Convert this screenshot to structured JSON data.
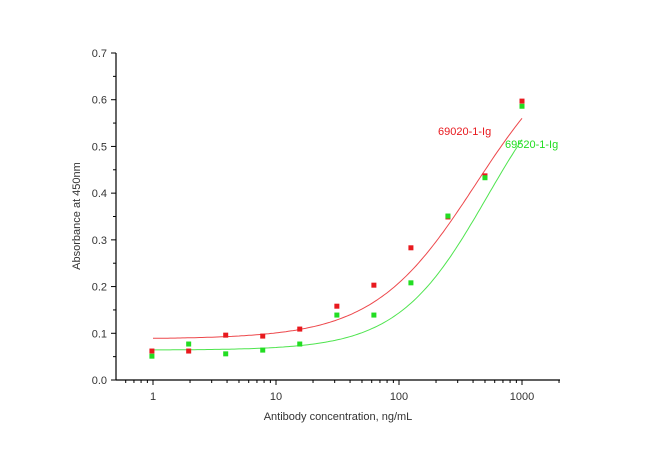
{
  "chart_data": {
    "type": "scatter",
    "title": "",
    "xlabel": "Antibody concentration, ng/mL",
    "ylabel": "Absorbance at 450nm",
    "xscale": "log",
    "xlim": [
      0.5,
      2000
    ],
    "ylim": [
      0.0,
      0.7
    ],
    "x_ticks": [
      1,
      10,
      100,
      1000
    ],
    "x_tick_labels": [
      "1",
      "10",
      "100",
      "1000"
    ],
    "y_ticks": [
      0.0,
      0.1,
      0.2,
      0.3,
      0.4,
      0.5,
      0.6,
      0.7
    ],
    "y_tick_labels": [
      "0.0",
      "0.1",
      "0.2",
      "0.3",
      "0.4",
      "0.5",
      "0.6",
      "0.7"
    ],
    "grid": false,
    "legend": "inline labels near curves",
    "x": [
      0.98,
      1.95,
      3.9,
      7.8,
      15.6,
      31.25,
      62.5,
      125,
      250,
      500,
      1000
    ],
    "series": [
      {
        "name": "69020-1-Ig",
        "color": "#e8191e",
        "values": [
          0.062,
          0.062,
          0.096,
          0.094,
          0.109,
          0.158,
          0.203,
          0.283,
          0.349,
          0.437,
          0.597
        ],
        "fit": {
          "type": "4PL",
          "bottom": 0.088,
          "top": 0.75,
          "ec50": 420,
          "hill": 1.05
        }
      },
      {
        "name": "69520-1-Ig",
        "color": "#22dd22",
        "values": [
          0.051,
          0.077,
          0.056,
          0.064,
          0.077,
          0.139,
          0.139,
          0.208,
          0.351,
          0.433,
          0.586
        ],
        "fit": {
          "type": "4PL",
          "bottom": 0.064,
          "top": 0.72,
          "ec50": 520,
          "hill": 1.2
        }
      }
    ],
    "annotations": [
      {
        "text": "69020-1-Ig",
        "x": 300,
        "y": 0.53,
        "color": "#e8191e"
      },
      {
        "text": "69520-1-Ig",
        "x": 800,
        "y": 0.5,
        "color": "#22dd22"
      }
    ]
  }
}
